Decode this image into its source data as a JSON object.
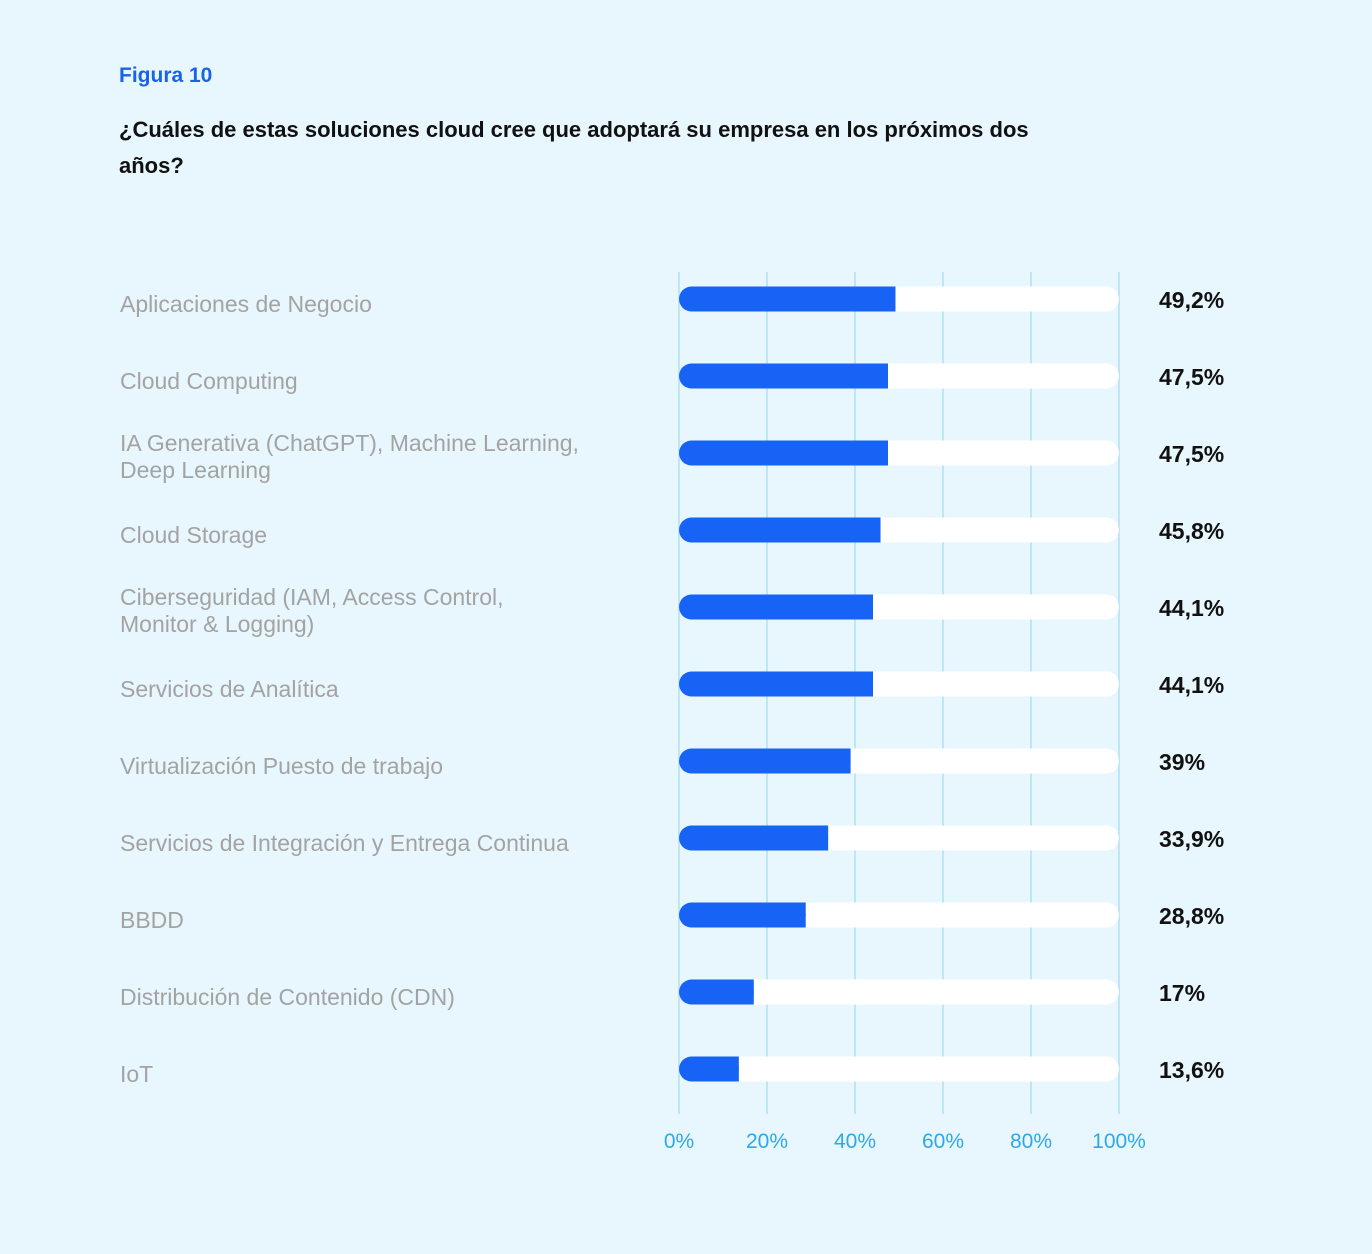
{
  "figure": {
    "label": "Figura 10",
    "title": "¿Cuáles de estas soluciones cloud cree que adoptará su empresa en los próximos dos años?"
  },
  "colors": {
    "background": "#e8f7fd",
    "bar_fill": "#1763f5",
    "bar_track": "#ffffff",
    "grid": "#a6dcf2",
    "tick_label": "#2ea8e6",
    "category_label": "#a3a3a3",
    "value_label": "#111111"
  },
  "chart_data": {
    "type": "bar",
    "orientation": "horizontal",
    "categories": [
      [
        "Aplicaciones de Negocio"
      ],
      [
        "Cloud Computing"
      ],
      [
        "IA Generativa (ChatGPT), Machine Learning,",
        "Deep Learning"
      ],
      [
        "Cloud Storage"
      ],
      [
        "Ciberseguridad (IAM, Access Control,",
        "Monitor & Logging)"
      ],
      [
        "Servicios de Analítica"
      ],
      [
        "Virtualización Puesto de trabajo"
      ],
      [
        "Servicios de Integración y Entrega Continua"
      ],
      [
        "BBDD"
      ],
      [
        "Distribución de Contenido (CDN)"
      ],
      [
        "IoT"
      ]
    ],
    "values": [
      49.2,
      47.5,
      47.5,
      45.8,
      44.1,
      44.1,
      39,
      33.9,
      28.8,
      17,
      13.6
    ],
    "value_labels": [
      "49,2%",
      "47,5%",
      "47,5%",
      "45,8%",
      "44,1%",
      "44,1%",
      "39%",
      "33,9%",
      "28,8%",
      "17%",
      "13,6%"
    ],
    "xlim": [
      0,
      100
    ],
    "x_ticks": [
      0,
      20,
      40,
      60,
      80,
      100
    ],
    "x_tick_labels": [
      "0%",
      "20%",
      "40%",
      "60%",
      "80%",
      "100%"
    ],
    "grid": true
  }
}
